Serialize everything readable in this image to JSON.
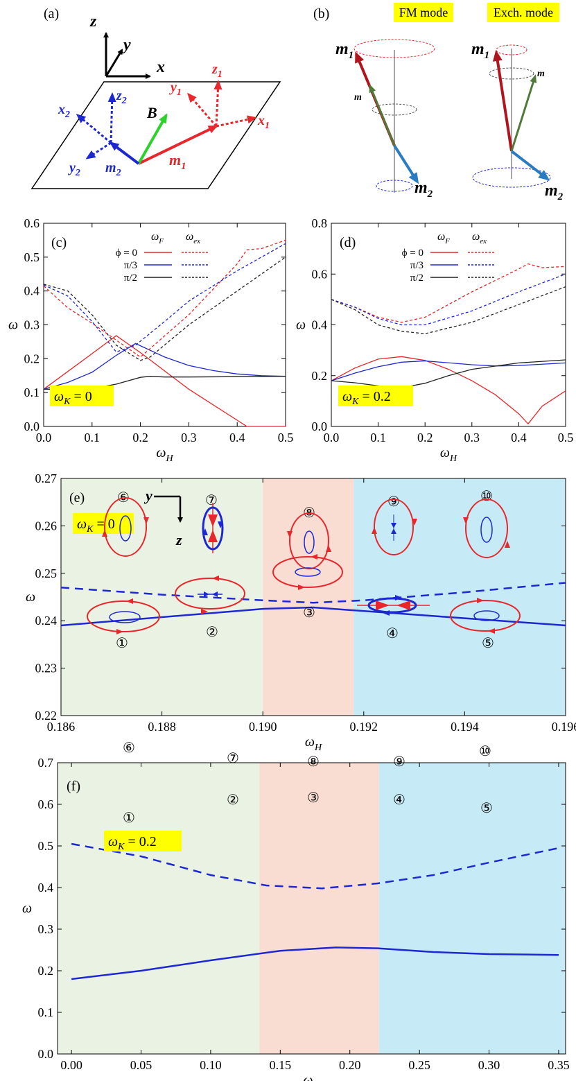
{
  "figure": {
    "panel_labels": {
      "a": "(a)",
      "b": "(b)",
      "c": "(c)",
      "d": "(d)",
      "e": "(e)",
      "f": "(f)"
    },
    "colors": {
      "red": "#e8262b",
      "blue": "#1e28d2",
      "black": "#222222",
      "green": "#2ad22a",
      "region_green": "#eaf3e3",
      "region_orange": "#f9ddd2",
      "region_blue": "#c6ebf7",
      "highlight": "#ffff00",
      "dark_red": "#b0141c",
      "steel_blue": "#2a7cc2",
      "olive": "#507a3a"
    }
  },
  "panel_a": {
    "axes": {
      "x": "x",
      "y": "y",
      "z": "z"
    },
    "red_labels": {
      "x1": "x",
      "y1": "y",
      "z1": "z",
      "sub": "1"
    },
    "blue_labels": {
      "x2": "x",
      "y2": "y",
      "z2": "z",
      "sub": "2"
    },
    "b": "B",
    "m1": "m",
    "m1_sub": "1",
    "m2": "m",
    "m2_sub": "2"
  },
  "panel_b": {
    "fm_mode": "FM mode",
    "exch_mode": "Exch. mode",
    "m": "m",
    "m1": "m",
    "m1_sub": "1",
    "m2": "m",
    "m2_sub": "2"
  },
  "chart_data": [
    {
      "id": "c",
      "type": "line",
      "xlabel": "ω",
      "xlabel_sub": "H",
      "ylabel": "ω",
      "xlim": [
        0,
        0.5
      ],
      "ylim": [
        0,
        0.6
      ],
      "xticks": [
        "0.0",
        "0.1",
        "0.2",
        "0.3",
        "0.4",
        "0.5"
      ],
      "yticks": [
        "0.0",
        "0.1",
        "0.2",
        "0.3",
        "0.4",
        "0.5",
        "0.6"
      ],
      "legend": {
        "head_F": "ω",
        "head_F_sub": "F",
        "head_ex": "ω",
        "head_ex_sub": "ex",
        "rows": [
          "ϕ = 0",
          "π/3",
          "π/2"
        ]
      },
      "annotation": {
        "text": "ω",
        "sub": "K",
        "value": " = 0"
      },
      "series": [
        {
          "name": "ωF ϕ=0",
          "color": "red",
          "dash": false,
          "x": [
            0,
            0.1,
            0.15,
            0.2,
            0.3,
            0.42,
            0.5
          ],
          "y": [
            0.11,
            0.215,
            0.268,
            0.218,
            0.11,
            0.0,
            0.0
          ]
        },
        {
          "name": "ωF π/3",
          "color": "blue",
          "dash": false,
          "x": [
            0,
            0.05,
            0.1,
            0.15,
            0.19,
            0.25,
            0.3,
            0.35,
            0.4,
            0.45,
            0.5
          ],
          "y": [
            0.11,
            0.13,
            0.16,
            0.21,
            0.245,
            0.205,
            0.18,
            0.165,
            0.155,
            0.15,
            0.148
          ]
        },
        {
          "name": "ωF π/2",
          "color": "black",
          "dash": false,
          "x": [
            0,
            0.05,
            0.1,
            0.15,
            0.2,
            0.22,
            0.25,
            0.3,
            0.4,
            0.5
          ],
          "y": [
            0.11,
            0.11,
            0.112,
            0.125,
            0.145,
            0.148,
            0.146,
            0.146,
            0.147,
            0.148
          ]
        },
        {
          "name": "ωex ϕ=0",
          "color": "red",
          "dash": true,
          "x": [
            0,
            0.05,
            0.1,
            0.15,
            0.2,
            0.3,
            0.4,
            0.42,
            0.45,
            0.5
          ],
          "y": [
            0.415,
            0.35,
            0.305,
            0.255,
            0.205,
            0.33,
            0.48,
            0.522,
            0.525,
            0.55
          ]
        },
        {
          "name": "ωex π/3",
          "color": "blue",
          "dash": true,
          "x": [
            0,
            0.05,
            0.1,
            0.15,
            0.19,
            0.25,
            0.3,
            0.4,
            0.5
          ],
          "y": [
            0.418,
            0.385,
            0.31,
            0.22,
            0.24,
            0.31,
            0.37,
            0.46,
            0.54
          ]
        },
        {
          "name": "ωex π/2",
          "color": "black",
          "dash": true,
          "x": [
            0,
            0.05,
            0.1,
            0.15,
            0.2,
            0.22,
            0.3,
            0.4,
            0.5
          ],
          "y": [
            0.42,
            0.4,
            0.33,
            0.24,
            0.195,
            0.205,
            0.3,
            0.4,
            0.5
          ]
        }
      ]
    },
    {
      "id": "d",
      "type": "line",
      "xlabel": "ω",
      "xlabel_sub": "H",
      "ylabel": "ω",
      "xlim": [
        0,
        0.5
      ],
      "ylim": [
        0,
        0.8
      ],
      "xticks": [
        "0.0",
        "0.1",
        "0.2",
        "0.3",
        "0.4",
        "0.5"
      ],
      "yticks": [
        "0.0",
        "0.2",
        "0.4",
        "0.6",
        "0.8"
      ],
      "legend": {
        "head_F": "ω",
        "head_F_sub": "F",
        "head_ex": "ω",
        "head_ex_sub": "ex",
        "rows": [
          "ϕ = 0",
          "π/3",
          "π/2"
        ]
      },
      "annotation": {
        "text": "ω",
        "sub": "K",
        "value": " = 0.2"
      },
      "series": [
        {
          "name": "ωF ϕ=0",
          "color": "red",
          "dash": false,
          "x": [
            0,
            0.05,
            0.1,
            0.15,
            0.2,
            0.25,
            0.3,
            0.35,
            0.4,
            0.42,
            0.45,
            0.5
          ],
          "y": [
            0.18,
            0.23,
            0.265,
            0.275,
            0.26,
            0.225,
            0.18,
            0.125,
            0.05,
            0.01,
            0.08,
            0.14
          ]
        },
        {
          "name": "ωF π/3",
          "color": "blue",
          "dash": false,
          "x": [
            0,
            0.05,
            0.1,
            0.15,
            0.2,
            0.3,
            0.35,
            0.4,
            0.5
          ],
          "y": [
            0.18,
            0.21,
            0.235,
            0.253,
            0.258,
            0.243,
            0.238,
            0.24,
            0.25
          ]
        },
        {
          "name": "ωF π/2",
          "color": "black",
          "dash": false,
          "x": [
            0,
            0.05,
            0.1,
            0.15,
            0.2,
            0.25,
            0.3,
            0.4,
            0.5
          ],
          "y": [
            0.18,
            0.172,
            0.16,
            0.152,
            0.17,
            0.2,
            0.225,
            0.25,
            0.262
          ]
        },
        {
          "name": "ωex ϕ=0",
          "color": "red",
          "dash": true,
          "x": [
            0,
            0.05,
            0.1,
            0.15,
            0.2,
            0.3,
            0.4,
            0.42,
            0.45,
            0.5
          ],
          "y": [
            0.5,
            0.47,
            0.43,
            0.41,
            0.43,
            0.53,
            0.62,
            0.64,
            0.625,
            0.63
          ]
        },
        {
          "name": "ωex π/3",
          "color": "blue",
          "dash": true,
          "x": [
            0,
            0.05,
            0.1,
            0.15,
            0.2,
            0.3,
            0.4,
            0.5
          ],
          "y": [
            0.5,
            0.47,
            0.425,
            0.4,
            0.4,
            0.455,
            0.53,
            0.6
          ]
        },
        {
          "name": "ωex π/2",
          "color": "black",
          "dash": true,
          "x": [
            0,
            0.05,
            0.1,
            0.15,
            0.2,
            0.3,
            0.4,
            0.5
          ],
          "y": [
            0.5,
            0.46,
            0.4,
            0.375,
            0.365,
            0.41,
            0.48,
            0.55
          ]
        }
      ]
    },
    {
      "id": "e",
      "type": "line",
      "xlabel": "ω",
      "xlabel_sub": "H",
      "ylabel": "ω",
      "xlim": [
        0.186,
        0.196
      ],
      "ylim": [
        0.22,
        0.27
      ],
      "xticks": [
        "0.186",
        "0.188",
        "0.190",
        "0.192",
        "0.194",
        "0.196"
      ],
      "yticks": [
        "0.22",
        "0.23",
        "0.24",
        "0.25",
        "0.26",
        "0.27"
      ],
      "regions": [
        {
          "from": 0.186,
          "to": 0.19,
          "color": "region_green"
        },
        {
          "from": 0.19,
          "to": 0.1918,
          "color": "region_orange"
        },
        {
          "from": 0.1918,
          "to": 0.1962,
          "color": "region_blue"
        }
      ],
      "annotation": {
        "text": "ω",
        "sub": "K",
        "value": " = 0"
      },
      "axis_labels": {
        "y": "y",
        "z": "z"
      },
      "mode_labels": [
        "①",
        "②",
        "③",
        "④",
        "⑤",
        "⑥",
        "⑦",
        "⑧",
        "⑨",
        "⑩"
      ],
      "series": [
        {
          "name": "ωF",
          "color": "blue",
          "dash": false,
          "x": [
            0.186,
            0.19,
            0.191,
            0.196
          ],
          "y": [
            0.239,
            0.2425,
            0.2428,
            0.239
          ]
        },
        {
          "name": "ωex",
          "color": "blue",
          "dash": true,
          "x": [
            0.186,
            0.188,
            0.19,
            0.191,
            0.192,
            0.194,
            0.196
          ],
          "y": [
            0.247,
            0.2455,
            0.2443,
            0.2438,
            0.2443,
            0.246,
            0.248
          ]
        }
      ]
    },
    {
      "id": "f",
      "type": "line",
      "xlabel": "ω",
      "xlabel_sub": "H",
      "ylabel": "ω",
      "xlim": [
        -0.01,
        0.355
      ],
      "ylim": [
        0,
        0.7
      ],
      "xticks": [
        "0.00",
        "0.05",
        "0.10",
        "0.15",
        "0.20",
        "0.25",
        "0.30",
        "0.35"
      ],
      "yticks": [
        "0.0",
        "0.1",
        "0.2",
        "0.3",
        "0.4",
        "0.5",
        "0.6",
        "0.7"
      ],
      "regions": [
        {
          "from": -0.01,
          "to": 0.135,
          "color": "region_green"
        },
        {
          "from": 0.135,
          "to": 0.221,
          "color": "region_orange"
        },
        {
          "from": 0.221,
          "to": 0.355,
          "color": "region_blue"
        }
      ],
      "annotation": {
        "text": "ω",
        "sub": "K",
        "value": " = 0.2"
      },
      "mode_labels": [
        "①",
        "②",
        "③",
        "④",
        "⑤",
        "⑥",
        "⑦",
        "⑧",
        "⑨",
        "⑩"
      ],
      "series": [
        {
          "name": "ωF",
          "color": "blue",
          "dash": false,
          "x": [
            0,
            0.05,
            0.1,
            0.15,
            0.19,
            0.22,
            0.26,
            0.3,
            0.35
          ],
          "y": [
            0.18,
            0.2,
            0.225,
            0.248,
            0.256,
            0.254,
            0.245,
            0.24,
            0.238
          ]
        },
        {
          "name": "ωex",
          "color": "blue",
          "dash": true,
          "x": [
            0,
            0.05,
            0.1,
            0.14,
            0.18,
            0.22,
            0.26,
            0.3,
            0.35
          ],
          "y": [
            0.505,
            0.475,
            0.43,
            0.405,
            0.398,
            0.41,
            0.43,
            0.46,
            0.495
          ]
        }
      ]
    }
  ]
}
